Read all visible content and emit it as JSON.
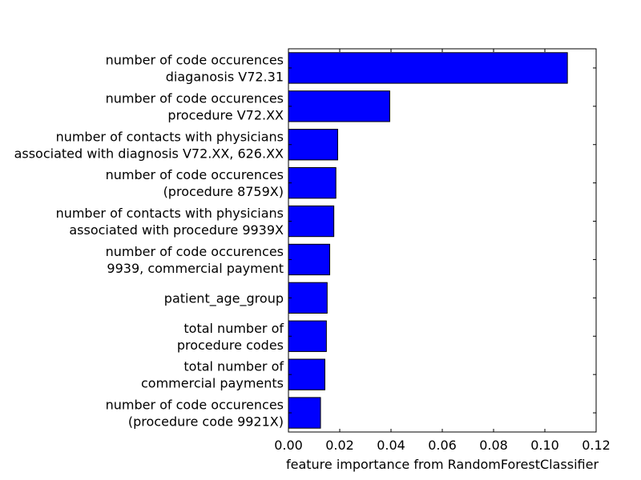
{
  "chart_data": {
    "type": "bar",
    "orientation": "horizontal",
    "title": "",
    "xlabel": "feature importance from RandomForestClassifier",
    "ylabel": "",
    "xlim": [
      0,
      0.12
    ],
    "xticks": [
      "0.00",
      "0.02",
      "0.04",
      "0.06",
      "0.08",
      "0.10",
      "0.12"
    ],
    "bar_color": "#0000ff",
    "grid": false,
    "categories": [
      [
        "number of code occurences",
        "diaganosis V72.31"
      ],
      [
        "number of code occurences",
        "procedure V72.XX"
      ],
      [
        "number of contacts with physicians",
        "associated with diagnosis V72.XX, 626.XX"
      ],
      [
        "number of code occurences",
        "(procedure 8759X)"
      ],
      [
        "number of contacts with physicians",
        "associated with procedure 9939X"
      ],
      [
        "number of code occurences",
        "9939, commercial payment"
      ],
      [
        "patient_age_group"
      ],
      [
        "total number of",
        "procedure codes"
      ],
      [
        "total number of",
        "commercial payments"
      ],
      [
        "number of code occurences",
        "(procedure code 9921X)"
      ]
    ],
    "values": [
      0.1088,
      0.0395,
      0.0192,
      0.0185,
      0.0177,
      0.0161,
      0.0151,
      0.0148,
      0.0142,
      0.0125
    ]
  }
}
